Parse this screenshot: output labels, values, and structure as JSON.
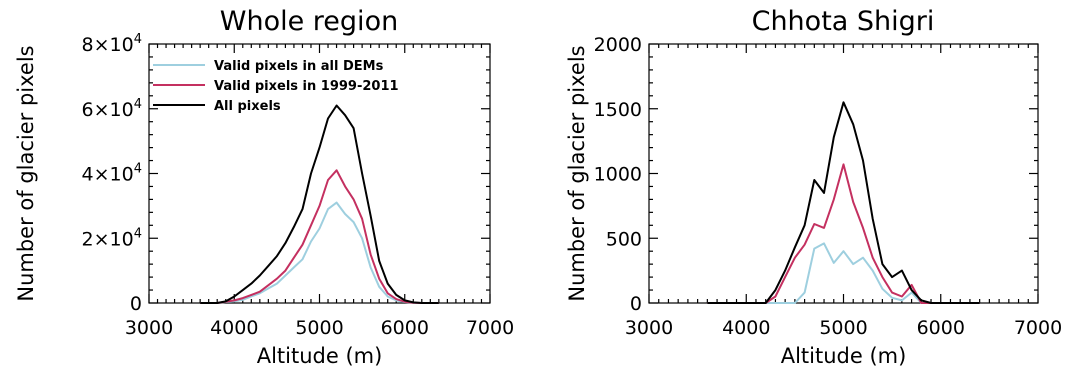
{
  "chart_data": [
    {
      "type": "line",
      "title": "Whole region",
      "xlabel": "Altitude (m)",
      "ylabel": "Number of glacier pixels",
      "xlim": [
        3000,
        7000
      ],
      "ylim": [
        0,
        80000
      ],
      "x_ticks": [
        "3000",
        "4000",
        "5000",
        "6000",
        "7000"
      ],
      "y_ticks": [
        "0",
        "2×10⁴",
        "4×10⁴",
        "6×10⁴",
        "8×10⁴"
      ],
      "y_tick_values": [
        0,
        20000,
        40000,
        60000,
        80000
      ],
      "legend_placement": "top-left",
      "x": [
        3600,
        3700,
        3800,
        3900,
        4000,
        4100,
        4200,
        4300,
        4400,
        4500,
        4600,
        4700,
        4800,
        4900,
        5000,
        5100,
        5200,
        5300,
        5400,
        5500,
        5600,
        5700,
        5800,
        5900,
        6000,
        6100,
        6200,
        6300,
        6400
      ],
      "series": [
        {
          "name": "Valid pixels in all DEMs",
          "color": "#9ecfdf",
          "values": [
            0,
            0,
            0,
            300,
            500,
            1000,
            2000,
            3000,
            4500,
            6000,
            8500,
            11000,
            13500,
            19000,
            23000,
            29000,
            31000,
            27500,
            25000,
            20000,
            11000,
            5000,
            2000,
            800,
            300,
            100,
            0,
            0,
            0
          ]
        },
        {
          "name": "Valid pixels in 1999-2011",
          "color": "#c43060",
          "values": [
            0,
            0,
            0,
            400,
            800,
            1500,
            2500,
            3500,
            5500,
            7500,
            10000,
            14000,
            18000,
            24000,
            30000,
            38000,
            41000,
            36000,
            32000,
            26000,
            15000,
            7500,
            3000,
            1200,
            400,
            100,
            0,
            0,
            0
          ]
        },
        {
          "name": "All pixels",
          "color": "#000000",
          "values": [
            0,
            0,
            0,
            500,
            2000,
            4000,
            6000,
            8500,
            11500,
            14500,
            18500,
            23500,
            29000,
            40000,
            48000,
            57000,
            61000,
            58000,
            54000,
            40000,
            27000,
            13000,
            6000,
            2500,
            800,
            200,
            0,
            0,
            0
          ]
        }
      ]
    },
    {
      "type": "line",
      "title": "Chhota Shigri",
      "xlabel": "Altitude (m)",
      "ylabel": "Number of glacier pixels",
      "xlim": [
        3000,
        7000
      ],
      "ylim": [
        0,
        2000
      ],
      "x_ticks": [
        "3000",
        "4000",
        "5000",
        "6000",
        "7000"
      ],
      "y_ticks": [
        "0",
        "500",
        "1000",
        "1500",
        "2000"
      ],
      "y_tick_values": [
        0,
        500,
        1000,
        1500,
        2000
      ],
      "x": [
        3600,
        3700,
        3800,
        3900,
        4000,
        4100,
        4200,
        4300,
        4400,
        4500,
        4600,
        4700,
        4800,
        4900,
        5000,
        5100,
        5200,
        5300,
        5400,
        5500,
        5600,
        5700,
        5800,
        5900,
        6000,
        6100,
        6200,
        6300,
        6400
      ],
      "series": [
        {
          "name": "Valid pixels in all DEMs",
          "color": "#9ecfdf",
          "values": [
            0,
            0,
            0,
            0,
            0,
            0,
            0,
            0,
            0,
            0,
            80,
            420,
            460,
            310,
            400,
            300,
            350,
            250,
            110,
            40,
            20,
            80,
            0,
            0,
            0,
            0,
            0,
            0,
            0
          ]
        },
        {
          "name": "Valid pixels in 1999-2011",
          "color": "#c43060",
          "values": [
            0,
            0,
            0,
            0,
            0,
            0,
            0,
            50,
            200,
            350,
            450,
            610,
            580,
            800,
            1070,
            780,
            580,
            350,
            200,
            80,
            50,
            140,
            0,
            0,
            0,
            0,
            0,
            0,
            0
          ]
        },
        {
          "name": "All pixels",
          "color": "#000000",
          "values": [
            0,
            0,
            0,
            0,
            0,
            0,
            0,
            100,
            250,
            430,
            600,
            950,
            850,
            1280,
            1550,
            1380,
            1100,
            650,
            300,
            200,
            250,
            100,
            20,
            0,
            0,
            0,
            0,
            0,
            0
          ]
        }
      ]
    }
  ]
}
